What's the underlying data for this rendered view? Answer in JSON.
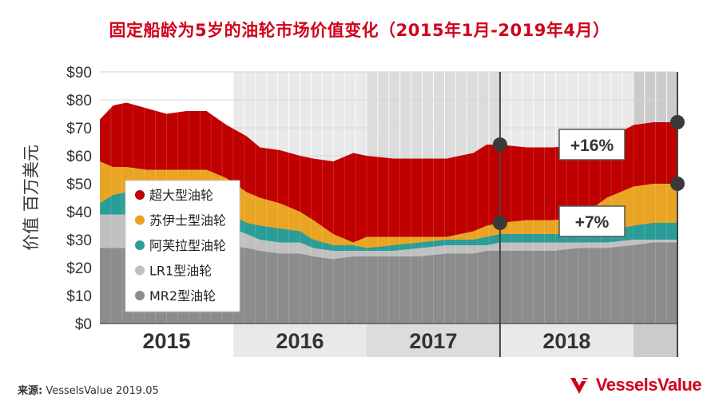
{
  "title": "固定船龄为5岁的油轮市场价值变化（2015年1月-2019年4月）",
  "source": {
    "label": "来源:",
    "value": "VesselsValue 2019.05"
  },
  "logo": {
    "text": "VesselsValue"
  },
  "colors": {
    "vlcc": "#c00000",
    "suezmax": "#e9a423",
    "aframax": "#2a9d98",
    "lr1": "#c0c0c0",
    "mr2": "#8c8c8c",
    "accent": "#d0021b",
    "year_band_1": "#ffffff",
    "year_band_2": "#e9e9e9",
    "year_band_3": "#dcdcdc",
    "year_band_4": "#cbcbcb"
  },
  "annotations": [
    {
      "text": "+16%",
      "series": "超大型油轮"
    },
    {
      "text": "+7%",
      "series": "苏伊士型油轮"
    }
  ],
  "chart_data": {
    "type": "area",
    "title": "固定船龄为5岁的油轮市场价值变化（2015年1月-2019年4月）",
    "ylabel": "价值 百万美元",
    "xlabel": "",
    "ylim": [
      0,
      90
    ],
    "yticks": [
      "$0",
      "$10",
      "$20",
      "$30",
      "$40",
      "$50",
      "$60",
      "$70",
      "$80",
      "$90"
    ],
    "xlim": [
      2015.0,
      2019.33
    ],
    "year_labels": [
      "2015",
      "2016",
      "2017",
      "2018"
    ],
    "stacked": false,
    "grid": true,
    "legend_position": "left-middle",
    "x": [
      2015.0,
      2015.1,
      2015.2,
      2015.35,
      2015.5,
      2015.65,
      2015.8,
      2015.95,
      2016.1,
      2016.2,
      2016.35,
      2016.5,
      2016.6,
      2016.75,
      2016.9,
      2017.0,
      2017.2,
      2017.4,
      2017.6,
      2017.8,
      2017.9,
      2018.0,
      2018.2,
      2018.4,
      2018.6,
      2018.8,
      2019.0,
      2019.15,
      2019.33
    ],
    "series": [
      {
        "name": "超大型油轮",
        "color_key": "vlcc",
        "values": [
          73,
          78,
          79,
          77,
          75,
          76,
          76,
          71,
          67,
          63,
          62,
          60,
          59,
          58,
          61,
          60,
          59,
          59,
          59,
          61,
          64,
          64,
          63,
          63,
          64,
          66,
          71,
          72,
          72
        ]
      },
      {
        "name": "苏伊士型油轮",
        "color_key": "suezmax",
        "values": [
          58,
          56,
          56,
          55,
          55,
          55,
          55,
          52,
          47,
          45,
          43,
          40,
          37,
          32,
          29,
          31,
          31,
          31,
          31,
          33,
          35,
          36,
          37,
          37,
          38,
          45,
          49,
          50,
          50
        ]
      },
      {
        "name": "阿芙拉型油轮",
        "color_key": "aframax",
        "values": [
          43,
          46,
          47,
          46,
          46,
          46,
          46,
          40,
          36,
          35,
          34,
          33,
          30,
          28,
          28,
          27,
          28,
          29,
          30,
          30,
          31,
          32,
          32,
          32,
          32,
          33,
          35,
          36,
          36
        ]
      },
      {
        "name": "LR1型油轮",
        "color_key": "lr1",
        "values": [
          39,
          39,
          39,
          39,
          38,
          38,
          38,
          35,
          32,
          30,
          29,
          29,
          27,
          26,
          26,
          26,
          26,
          27,
          28,
          28,
          28,
          29,
          29,
          29,
          29,
          29,
          30,
          30,
          30
        ]
      },
      {
        "name": "MR2型油轮",
        "color_key": "mr2",
        "values": [
          27,
          27,
          27,
          27,
          27,
          27,
          27,
          28,
          27,
          26,
          25,
          25,
          24,
          23,
          24,
          24,
          24,
          24,
          25,
          25,
          26,
          26,
          26,
          26,
          27,
          27,
          28,
          29,
          29
        ]
      }
    ]
  }
}
